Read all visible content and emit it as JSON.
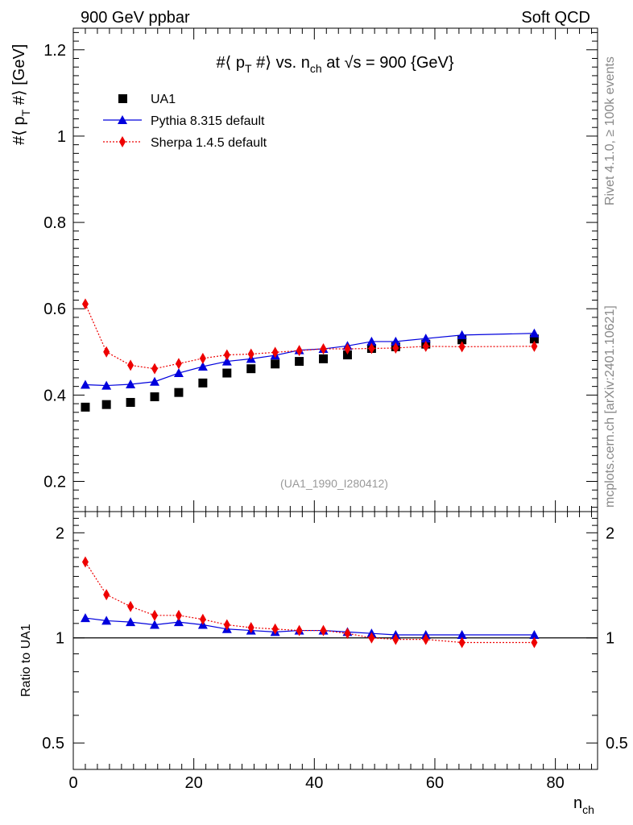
{
  "header": {
    "left": "900 GeV ppbar",
    "right": "Soft QCD"
  },
  "side_labels": {
    "top": "Rivet 4.1.0, ≥ 100k events",
    "bottom": "mcplots.cern.ch [arXiv:2401.10621]"
  },
  "chart_data": [
    {
      "type": "scatter",
      "title": "#⟨ pT #⟩ vs. nch at √s = 900 {GeV}",
      "title_parts": {
        "prefix": "#⟨ p",
        "sub1": "T",
        "mid": " #⟩ vs. n",
        "sub2": "ch",
        "suffix": " at √s = 900 {GeV}"
      },
      "ylabel": "#⟨ pT #⟩ [GeV]",
      "ylabel_parts": {
        "prefix": "#⟨ p",
        "sub": "T",
        "suffix": " #⟩ [GeV]"
      },
      "xlabel": "nch",
      "watermark": "(UA1_1990_I280412)",
      "xlim": [
        0,
        87
      ],
      "ylim": [
        0.13,
        1.25
      ],
      "yticks": [
        0.2,
        0.4,
        0.6,
        0.8,
        1,
        1.2
      ],
      "ytick_labels": [
        "0.2",
        "0.4",
        "0.6",
        "0.8",
        "1",
        "1.2"
      ],
      "legend_position": "top-left",
      "x": [
        2,
        5.5,
        9.5,
        13.5,
        17.5,
        21.5,
        25.5,
        29.5,
        33.5,
        37.5,
        41.5,
        45.5,
        49.5,
        53.5,
        58.5,
        64.5,
        76.5
      ],
      "series": [
        {
          "name": "UA1",
          "color": "#000000",
          "marker": "square",
          "values": [
            0.372,
            0.378,
            0.383,
            0.396,
            0.406,
            0.428,
            0.451,
            0.461,
            0.472,
            0.478,
            0.484,
            0.493,
            0.508,
            0.512,
            0.518,
            0.528,
            0.53
          ]
        },
        {
          "name": "Pythia 8.315 default",
          "color": "#0000dd",
          "marker": "triangle",
          "values": [
            0.424,
            0.422,
            0.425,
            0.431,
            0.451,
            0.466,
            0.478,
            0.484,
            0.492,
            0.504,
            0.507,
            0.514,
            0.524,
            0.524,
            0.531,
            0.539,
            0.543
          ]
        },
        {
          "name": "Sherpa 1.4.5 default",
          "color": "#ee0000",
          "marker": "diamond",
          "values": [
            0.611,
            0.5,
            0.469,
            0.461,
            0.473,
            0.485,
            0.493,
            0.495,
            0.499,
            0.503,
            0.507,
            0.507,
            0.508,
            0.509,
            0.513,
            0.512,
            0.513
          ]
        }
      ]
    },
    {
      "type": "scatter",
      "ylabel": "Ratio to UA1",
      "xlabel": "nch",
      "xlabel_parts": {
        "prefix": "n",
        "sub": "ch"
      },
      "xlim": [
        0,
        87
      ],
      "ylim": [
        0.42,
        2.3
      ],
      "yscale": "log",
      "yticks": [
        0.5,
        1,
        2
      ],
      "ytick_labels": [
        "0.5",
        "1",
        "2"
      ],
      "xticks": [
        0,
        20,
        40,
        60,
        80
      ],
      "xtick_labels": [
        "0",
        "20",
        "40",
        "60",
        "80"
      ],
      "reference_line": 1,
      "x": [
        2,
        5.5,
        9.5,
        13.5,
        17.5,
        21.5,
        25.5,
        29.5,
        33.5,
        37.5,
        41.5,
        45.5,
        49.5,
        53.5,
        58.5,
        64.5,
        76.5
      ],
      "series": [
        {
          "name": "Pythia 8.315 default",
          "color": "#0000dd",
          "marker": "triangle",
          "values": [
            1.14,
            1.12,
            1.11,
            1.09,
            1.11,
            1.09,
            1.06,
            1.05,
            1.04,
            1.05,
            1.05,
            1.04,
            1.03,
            1.02,
            1.02,
            1.02,
            1.02
          ]
        },
        {
          "name": "Sherpa 1.4.5 default",
          "color": "#ee0000",
          "marker": "diamond",
          "values": [
            1.65,
            1.33,
            1.23,
            1.16,
            1.16,
            1.13,
            1.09,
            1.07,
            1.06,
            1.05,
            1.05,
            1.03,
            1.0,
            0.99,
            0.99,
            0.97,
            0.97
          ]
        }
      ]
    }
  ]
}
